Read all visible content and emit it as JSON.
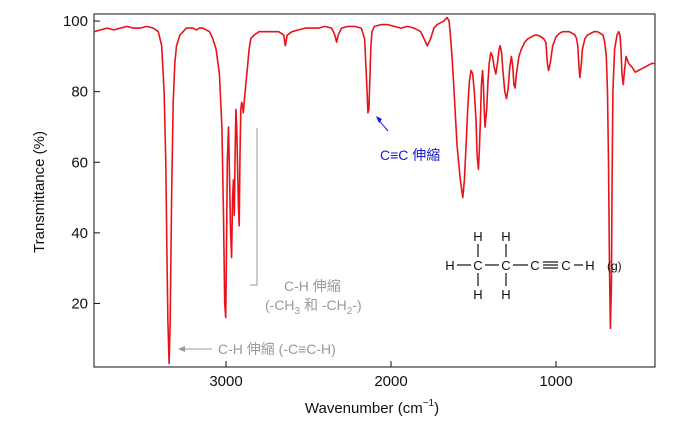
{
  "chart_data": {
    "type": "line",
    "xlabel": "Wavenumber (cm",
    "xlabel_sup": "−1",
    "xlabel_end": ")",
    "ylabel": "Transmittance (%)",
    "xlim": [
      3800,
      400
    ],
    "ylim": [
      2,
      102
    ],
    "x_reversed": true,
    "x_ticks": [
      3000,
      2000,
      1000
    ],
    "y_ticks": [
      20,
      40,
      60,
      80,
      100
    ],
    "grid": false,
    "line_color": "#e8131a",
    "series": [
      {
        "x": [
          3800,
          3760,
          3720,
          3680,
          3640,
          3600,
          3560,
          3520,
          3480,
          3440,
          3410,
          3390,
          3375,
          3365,
          3358,
          3352,
          3345,
          3338,
          3330,
          3320,
          3310,
          3300,
          3280,
          3260,
          3240,
          3220,
          3200,
          3180,
          3160,
          3140,
          3120,
          3100,
          3080,
          3060,
          3040,
          3025,
          3015,
          3008,
          3002,
          2998,
          2992,
          2985,
          2978,
          2972,
          2966,
          2960,
          2955,
          2950,
          2945,
          2940,
          2935,
          2930,
          2925,
          2920,
          2915,
          2910,
          2905,
          2900,
          2895,
          2888,
          2880,
          2870,
          2860,
          2850,
          2830,
          2800,
          2760,
          2720,
          2680,
          2650,
          2640,
          2630,
          2600,
          2560,
          2520,
          2480,
          2440,
          2400,
          2360,
          2340,
          2330,
          2320,
          2300,
          2260,
          2220,
          2180,
          2160,
          2145,
          2140,
          2134,
          2128,
          2122,
          2115,
          2100,
          2060,
          2020,
          1980,
          1940,
          1900,
          1860,
          1820,
          1800,
          1780,
          1760,
          1740,
          1720,
          1700,
          1680,
          1660,
          1648,
          1640,
          1630,
          1620,
          1600,
          1580,
          1565,
          1555,
          1545,
          1535,
          1525,
          1515,
          1505,
          1495,
          1485,
          1478,
          1470,
          1465,
          1458,
          1452,
          1445,
          1440,
          1435,
          1430,
          1420,
          1412,
          1405,
          1395,
          1385,
          1375,
          1365,
          1355,
          1345,
          1338,
          1330,
          1322,
          1310,
          1300,
          1290,
          1280,
          1270,
          1262,
          1255,
          1248,
          1240,
          1225,
          1210,
          1190,
          1170,
          1150,
          1130,
          1110,
          1090,
          1075,
          1062,
          1058,
          1052,
          1045,
          1035,
          1020,
          1000,
          980,
          960,
          940,
          920,
          900,
          885,
          875,
          868,
          862,
          856,
          848,
          840,
          825,
          810,
          790,
          770,
          750,
          730,
          715,
          705,
          695,
          688,
          682,
          676,
          670,
          664,
          660,
          655,
          645,
          630,
          620,
          612,
          606,
          600,
          592,
          585,
          575,
          560,
          540,
          520,
          500,
          480,
          460,
          440,
          420,
          400
        ],
        "y": [
          97,
          97.5,
          98,
          97.5,
          98,
          98.5,
          98,
          98,
          98.5,
          98,
          97,
          93,
          80,
          60,
          35,
          15,
          3,
          15,
          50,
          77,
          88,
          93,
          96,
          97,
          98,
          98,
          98,
          97.5,
          98,
          98,
          97.5,
          97,
          95,
          92,
          85,
          70,
          45,
          20,
          16,
          30,
          60,
          70,
          55,
          40,
          33,
          50,
          55,
          45,
          62,
          75,
          70,
          60,
          48,
          42,
          62,
          75,
          77,
          76,
          74,
          78,
          82,
          87,
          92,
          95,
          96,
          97,
          97,
          97,
          97,
          96,
          93,
          96,
          97,
          97.5,
          98,
          98,
          98,
          98.5,
          98,
          96,
          94,
          96,
          98,
          98.5,
          98.5,
          98,
          95,
          80,
          74,
          75,
          84,
          93,
          97,
          98.5,
          99,
          99,
          98.5,
          98,
          98.5,
          98,
          97,
          95,
          93,
          95,
          98,
          99,
          99.5,
          100,
          101,
          100,
          96,
          90,
          82,
          65,
          55,
          50,
          55,
          65,
          75,
          83,
          86,
          85,
          80,
          72,
          62,
          58,
          63,
          72,
          82,
          86,
          82,
          75,
          70,
          75,
          83,
          88,
          91,
          90,
          87,
          85,
          88,
          92,
          93,
          91,
          86,
          80,
          78,
          81,
          87,
          90,
          87,
          82,
          81,
          85,
          90,
          92,
          94,
          95,
          95.5,
          96,
          96,
          95.5,
          95,
          94,
          92,
          88,
          86,
          88,
          93,
          95.5,
          96.5,
          97,
          97,
          97,
          96.5,
          96,
          95,
          93,
          88,
          84,
          87,
          92,
          95,
          96,
          96.5,
          97,
          97,
          96.5,
          96,
          94,
          90,
          80,
          60,
          30,
          13,
          25,
          55,
          80,
          92,
          96,
          97,
          96,
          92,
          85,
          82,
          86,
          90,
          88,
          87,
          85.5,
          86,
          86.5,
          87,
          87.5,
          88,
          88
        ]
      }
    ],
    "annotations": [
      {
        "text": "C≡C 伸縮",
        "color": "#1a1acc",
        "x": 2110,
        "y": 63
      },
      {
        "text": "C-H 伸縮",
        "color": "#999999"
      },
      {
        "text": "(-CH",
        "color": "#999999"
      },
      {
        "text": "C-H 伸縮 (-C≡C-H)",
        "color": "#999999",
        "x": 3050,
        "y": 6
      }
    ],
    "annotation_subs": [
      "3",
      "2"
    ],
    "annotation_mid": " 和 -CH",
    "annotation_end": "-)",
    "molecule": {
      "atoms": [
        "H",
        "H",
        "H",
        "C",
        "C",
        "C",
        "C",
        "H",
        "H",
        "H"
      ],
      "phase": "(g)"
    }
  }
}
